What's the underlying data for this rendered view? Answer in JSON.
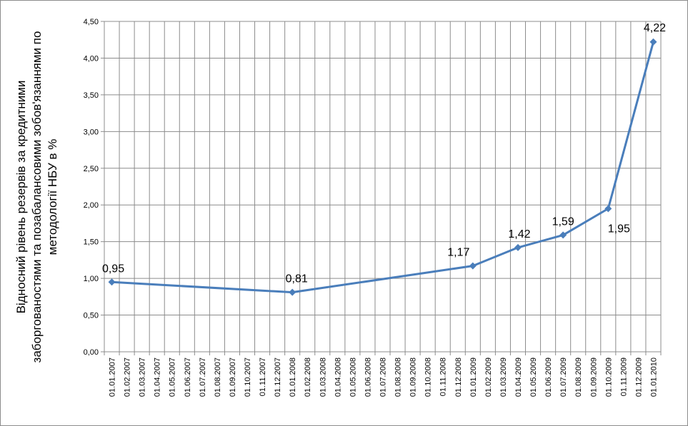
{
  "chart_data": {
    "type": "line",
    "title": "",
    "xlabel": "",
    "ylabel_lines": [
      "Відносний рівень резервів за кредитними",
      "заборгованостями та позабалансовими зобов'язаннями по",
      "методології НБУ в %"
    ],
    "ylim": [
      0,
      4.5
    ],
    "y_ticks": [
      "0,00",
      "0,50",
      "1,00",
      "1,50",
      "2,00",
      "2,50",
      "3,00",
      "3,50",
      "4,00",
      "4,50"
    ],
    "categories": [
      "01.01.2007",
      "01.02.2007",
      "01.03.2007",
      "01.04.2007",
      "01.05.2007",
      "01.06.2007",
      "01.07.2007",
      "01.08.2007",
      "01.09.2007",
      "01.10.2007",
      "01.11.2007",
      "01.12.2007",
      "01.01.2008",
      "01.02.2008",
      "01.03.2008",
      "01.04.2008",
      "01.05.2008",
      "01.06.2008",
      "01.07.2008",
      "01.08.2008",
      "01.09.2008",
      "01.10.2008",
      "01.11.2008",
      "01.12.2008",
      "01.01.2009",
      "01.02.2009",
      "01.03.2009",
      "01.04.2009",
      "01.05.2009",
      "01.06.2009",
      "01.07.2009",
      "01.08.2009",
      "01.09.2009",
      "01.10.2009",
      "01.11.2009",
      "01.12.2009",
      "01.01.2010"
    ],
    "grid": true,
    "legend": "none",
    "series": [
      {
        "color": "#4a7ebb",
        "points": [
          {
            "x": "01.01.2007",
            "y": 0.95,
            "label": "0,95"
          },
          {
            "x": "01.01.2008",
            "y": 0.81,
            "label": "0,81"
          },
          {
            "x": "01.01.2009",
            "y": 1.17,
            "label": "1,17"
          },
          {
            "x": "01.04.2009",
            "y": 1.42,
            "label": "1,42"
          },
          {
            "x": "01.07.2009",
            "y": 1.59,
            "label": "1,59"
          },
          {
            "x": "01.10.2009",
            "y": 1.95,
            "label": "1,95"
          },
          {
            "x": "01.01.2010",
            "y": 4.22,
            "label": "4,22"
          }
        ]
      }
    ]
  }
}
